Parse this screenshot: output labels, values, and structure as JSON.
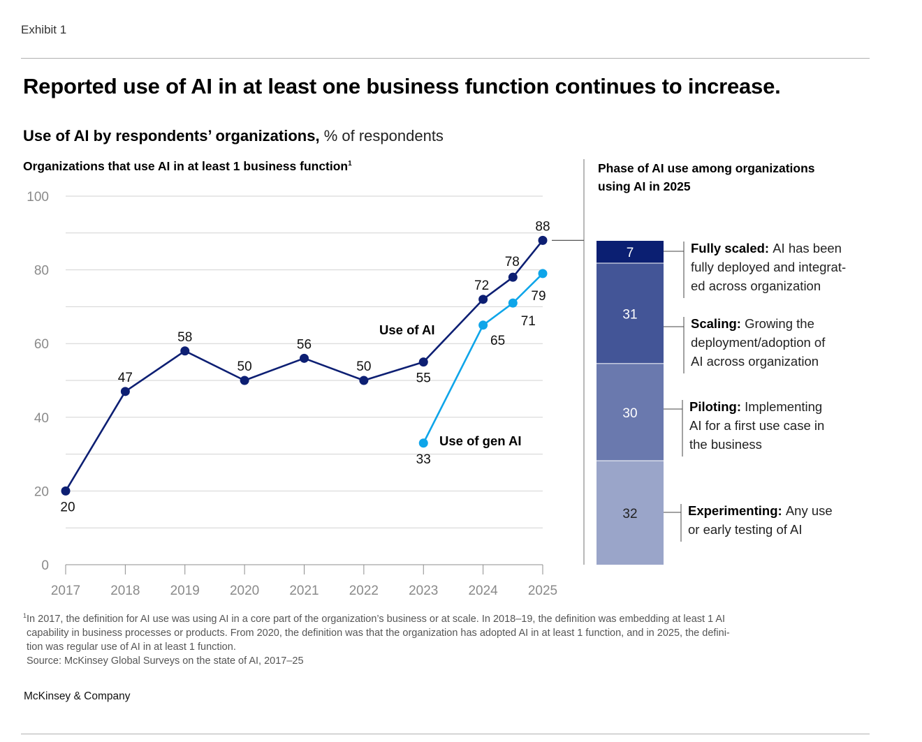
{
  "header": {
    "exhibit_label": "Exhibit 1",
    "title": "Reported use of AI in at least one business function continues to increase.",
    "subtitle_bold": "Use of AI by respondents’ organizations,",
    "subtitle_unit": " % of respondents"
  },
  "line_panel": {
    "title": "Organizations that use AI in at least 1 business function",
    "title_footnote_marker": "1"
  },
  "bar_panel": {
    "title_line1": "Phase of AI use among organizations",
    "title_line2": "using AI in 2025"
  },
  "footnotes": {
    "marker": "1",
    "line1": "In 2017, the definition for AI use was using AI in a core part of the organization’s business or at scale. In 2018–19, the definition was embedding at least 1 AI",
    "line2": "capability in business processes or products. From 2020, the definition was that the organization has adopted AI in at least 1 function, and in 2025, the defini-",
    "line3": "tion was regular use of AI in at least 1 function.",
    "source": "Source: McKinsey Global Surveys on the state of AI, 2017–25"
  },
  "brand": "McKinsey & Company",
  "colors": {
    "use_of_ai": "#0d1f73",
    "use_of_gen_ai": "#0ea5e9",
    "fully_scaled": "#0b1f72",
    "scaling": "#435597",
    "piloting": "#6a79ae",
    "experimenting": "#9aa5c9",
    "grid": "#d2d2d2",
    "axis": "#8c8c8c"
  },
  "chart_data": [
    {
      "type": "line",
      "title": "Organizations that use AI in at least 1 business function",
      "xlabel": "",
      "ylabel": "% of respondents",
      "ylim": [
        0,
        100
      ],
      "yticks": [
        0,
        20,
        40,
        60,
        80,
        100
      ],
      "grid": true,
      "xlim": [
        2017,
        2025
      ],
      "xticks": [
        2017,
        2018,
        2019,
        2020,
        2021,
        2022,
        2023,
        2024,
        2025
      ],
      "series": [
        {
          "name": "Use of AI",
          "x": [
            2017,
            2018,
            2019,
            2020,
            2021,
            2022,
            2023,
            2024,
            2024.5,
            2025
          ],
          "values": [
            20,
            47,
            58,
            50,
            56,
            50,
            55,
            72,
            78,
            88
          ],
          "label_pos": [
            "below",
            "above",
            "above",
            "above",
            "above",
            "above",
            "below",
            "above",
            "above",
            "above"
          ]
        },
        {
          "name": "Use of gen AI",
          "x": [
            2023,
            2024,
            2024.5,
            2025
          ],
          "values": [
            33,
            65,
            71,
            79
          ],
          "label_pos": [
            "below",
            "below",
            "below",
            "below"
          ]
        }
      ]
    },
    {
      "type": "bar",
      "title": "Phase of AI use among organizations using AI in 2025",
      "stacked": true,
      "ylim": [
        0,
        100
      ],
      "segments": [
        {
          "name": "Fully scaled",
          "value": 7,
          "desc": "AI has been fully deployed and integrat- ed across organization",
          "desc_lines": [
            "AI has been",
            "fully deployed and integrat-",
            "ed across organization"
          ]
        },
        {
          "name": "Scaling",
          "value": 31,
          "desc_lines": [
            "Growing the",
            "deployment/adoption of",
            "AI across organization"
          ]
        },
        {
          "name": "Piloting",
          "value": 30,
          "desc_lines": [
            "Implementing",
            "AI for a first use case in",
            "the business"
          ]
        },
        {
          "name": "Experimenting",
          "value": 32,
          "desc_lines": [
            "Any use",
            "or early testing of AI"
          ]
        }
      ]
    }
  ]
}
